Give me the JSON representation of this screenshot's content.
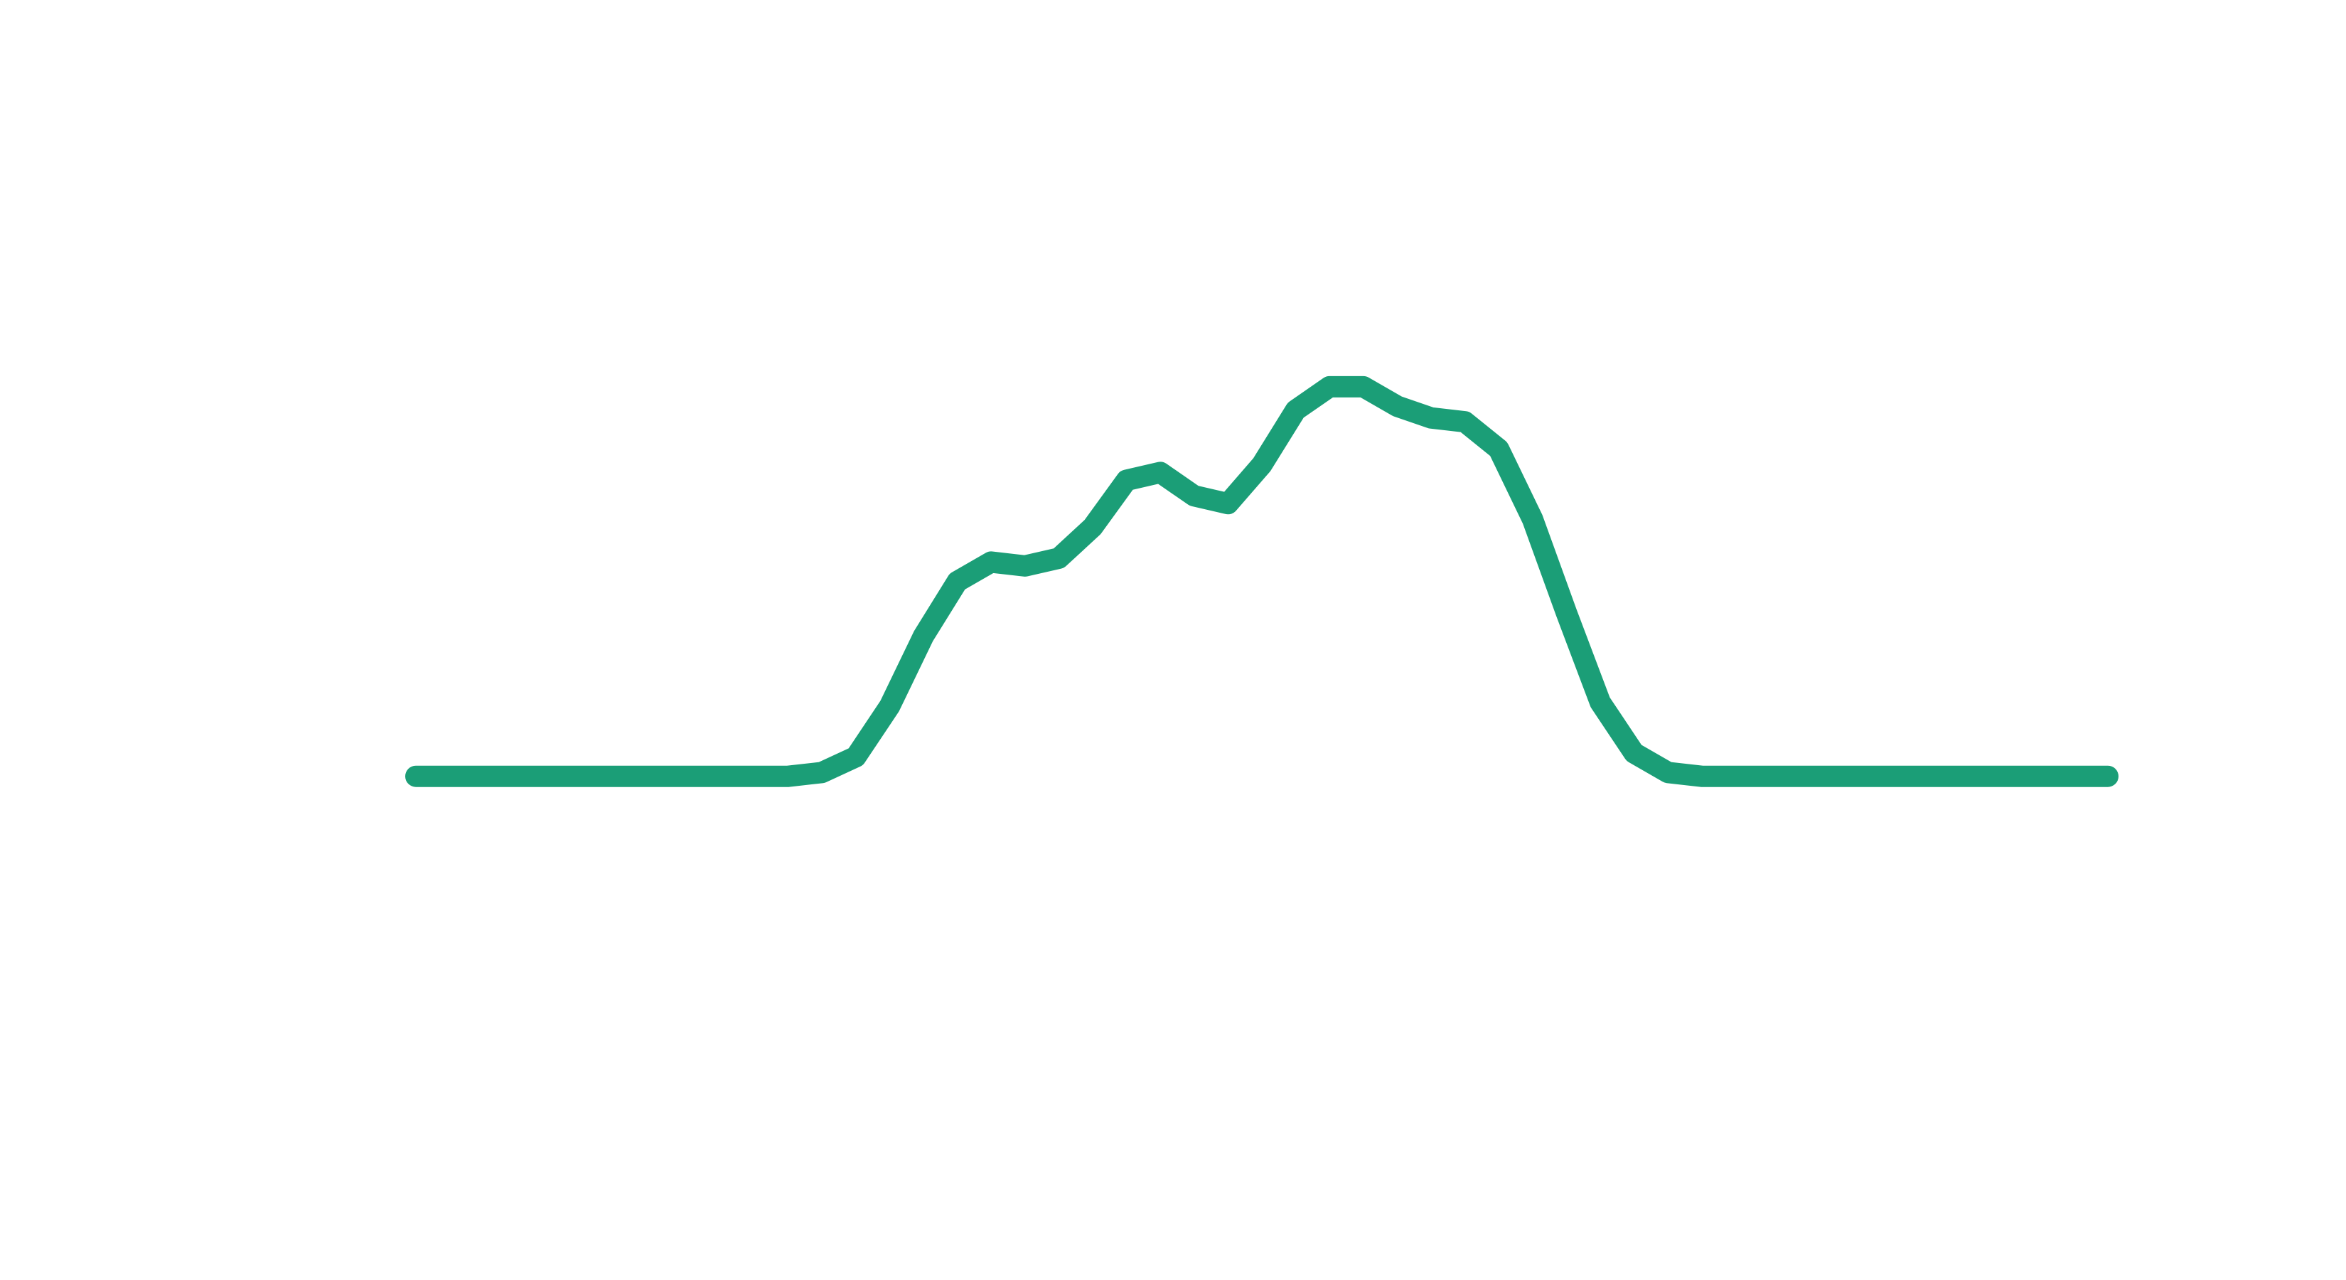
{
  "chart_data": {
    "type": "line",
    "title": "",
    "xlabel": "",
    "ylabel": "",
    "grid": false,
    "axes_visible": false,
    "legend": "none",
    "color": "#1b9e77",
    "x": [
      0,
      1,
      2,
      3,
      4,
      5,
      6,
      7,
      8,
      9,
      10,
      11,
      12,
      13,
      14,
      15,
      16,
      17,
      18,
      19,
      20,
      21,
      22,
      23,
      24,
      25,
      26,
      27,
      28,
      29,
      30,
      31,
      32,
      33,
      34,
      35,
      36,
      37,
      38,
      39,
      40,
      41,
      42,
      43,
      44,
      45,
      46,
      47,
      48,
      49,
      50
    ],
    "y": [
      0.0,
      0.0,
      0.0,
      0.0,
      0.0,
      0.0,
      0.0,
      0.0,
      0.0,
      0.0,
      0.0,
      0.0,
      0.01,
      0.05,
      0.18,
      0.36,
      0.5,
      0.55,
      0.54,
      0.56,
      0.64,
      0.76,
      0.78,
      0.72,
      0.7,
      0.8,
      0.94,
      1.0,
      1.0,
      0.95,
      0.92,
      0.91,
      0.84,
      0.66,
      0.42,
      0.19,
      0.06,
      0.01,
      0.0,
      0.0,
      0.0,
      0.0,
      0.0,
      0.0,
      0.0,
      0.0,
      0.0,
      0.0,
      0.0,
      0.0,
      0.0
    ],
    "xlim": [
      0,
      50
    ],
    "ylim": [
      -0.8,
      1.5
    ]
  }
}
